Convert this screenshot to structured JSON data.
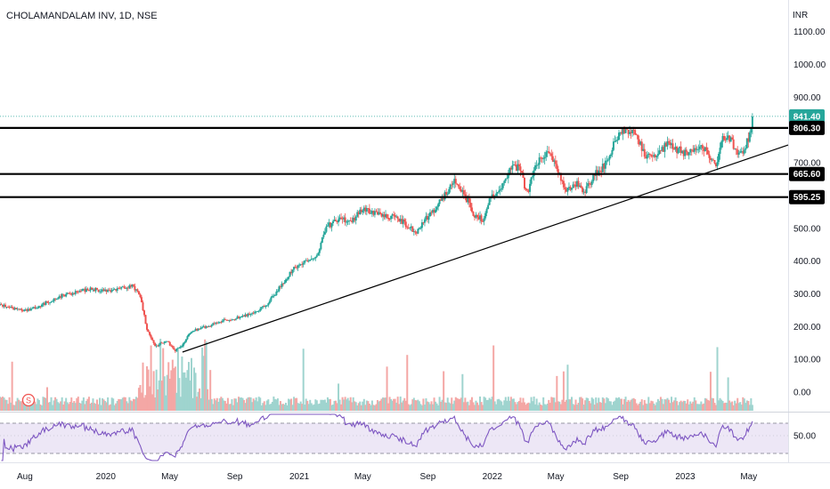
{
  "chart_data": {
    "type": "candlestick",
    "title": "CHOLAMANDALAM INV, 1D, NSE",
    "currency": "INR",
    "y_ticks": [
      0,
      100,
      200,
      300,
      400,
      500,
      600,
      700,
      900,
      1000,
      1100
    ],
    "y_tick_labels": [
      "0.00",
      "100.00",
      "200.00",
      "300.00",
      "400.00",
      "500.00",
      "600.00",
      "700.00",
      "900.00",
      "1000.00",
      "1100.00"
    ],
    "ylim": [
      0,
      1150
    ],
    "x_labels": [
      "Aug",
      "2020",
      "May",
      "Sep",
      "2021",
      "May",
      "Sep",
      "2022",
      "May",
      "Sep",
      "2023",
      "May"
    ],
    "price_path": [
      [
        "2019-06-15",
        265
      ],
      [
        "2019-07-10",
        255
      ],
      [
        "2019-08-05",
        248
      ],
      [
        "2019-09-01",
        265
      ],
      [
        "2019-10-10",
        295
      ],
      [
        "2019-12-01",
        315
      ],
      [
        "2020-01-01",
        308
      ],
      [
        "2020-02-01",
        318
      ],
      [
        "2020-02-20",
        325
      ],
      [
        "2020-03-05",
        298
      ],
      [
        "2020-03-20",
        185
      ],
      [
        "2020-04-05",
        138
      ],
      [
        "2020-04-25",
        160
      ],
      [
        "2020-05-10",
        125
      ],
      [
        "2020-05-25",
        145
      ],
      [
        "2020-06-10",
        185
      ],
      [
        "2020-07-10",
        200
      ],
      [
        "2020-08-10",
        218
      ],
      [
        "2020-09-10",
        228
      ],
      [
        "2020-10-10",
        245
      ],
      [
        "2020-11-01",
        268
      ],
      [
        "2020-11-25",
        320
      ],
      [
        "2020-12-20",
        375
      ],
      [
        "2021-01-10",
        395
      ],
      [
        "2021-02-05",
        420
      ],
      [
        "2021-02-20",
        502
      ],
      [
        "2021-03-15",
        528
      ],
      [
        "2021-04-10",
        525
      ],
      [
        "2021-05-01",
        555
      ],
      [
        "2021-05-25",
        548
      ],
      [
        "2021-06-25",
        535
      ],
      [
        "2021-07-15",
        520
      ],
      [
        "2021-08-10",
        485
      ],
      [
        "2021-08-25",
        525
      ],
      [
        "2021-09-15",
        560
      ],
      [
        "2021-10-10",
        615
      ],
      [
        "2021-10-25",
        648
      ],
      [
        "2021-11-15",
        585
      ],
      [
        "2021-11-28",
        540
      ],
      [
        "2021-12-15",
        525
      ],
      [
        "2021-12-25",
        585
      ],
      [
        "2022-01-15",
        610
      ],
      [
        "2022-02-01",
        675
      ],
      [
        "2022-02-20",
        690
      ],
      [
        "2022-03-08",
        605
      ],
      [
        "2022-03-25",
        695
      ],
      [
        "2022-04-15",
        735
      ],
      [
        "2022-05-05",
        680
      ],
      [
        "2022-05-20",
        615
      ],
      [
        "2022-06-10",
        635
      ],
      [
        "2022-06-25",
        615
      ],
      [
        "2022-07-10",
        655
      ],
      [
        "2022-08-05",
        700
      ],
      [
        "2022-08-25",
        782
      ],
      [
        "2022-09-10",
        800
      ],
      [
        "2022-09-28",
        800
      ],
      [
        "2022-10-15",
        725
      ],
      [
        "2022-11-05",
        718
      ],
      [
        "2022-11-25",
        755
      ],
      [
        "2022-12-15",
        740
      ],
      [
        "2023-01-05",
        728
      ],
      [
        "2023-01-25",
        748
      ],
      [
        "2023-02-10",
        738
      ],
      [
        "2023-02-28",
        692
      ],
      [
        "2023-03-12",
        785
      ],
      [
        "2023-03-25",
        772
      ],
      [
        "2023-04-05",
        745
      ],
      [
        "2023-04-15",
        728
      ],
      [
        "2023-04-24",
        742
      ],
      [
        "2023-05-02",
        785
      ],
      [
        "2023-05-08",
        841.4
      ]
    ],
    "last_price": "841.40",
    "horizontal_levels": [
      {
        "value": 806.3,
        "label": "806.30"
      },
      {
        "value": 665.6,
        "label": "665.60"
      },
      {
        "value": 595.25,
        "label": "595.25"
      }
    ],
    "trendline": {
      "start": [
        "2020-05-25",
        122
      ],
      "end": [
        "2023-06-15",
        738
      ]
    },
    "volume_marker": "S",
    "rsi": {
      "y_tick_label": "50.00",
      "overbought": 70,
      "oversold": 30,
      "level": 50
    },
    "colors": {
      "up": "#26a69a",
      "down": "#ef5350",
      "vol_up": "#9fd4cf",
      "vol_down": "#f4a7a5",
      "rsi_line": "#7e57c2",
      "rsi_band": "#ede7f6",
      "last_price_badge": "#26a69a",
      "level_badge": "#000000"
    }
  }
}
